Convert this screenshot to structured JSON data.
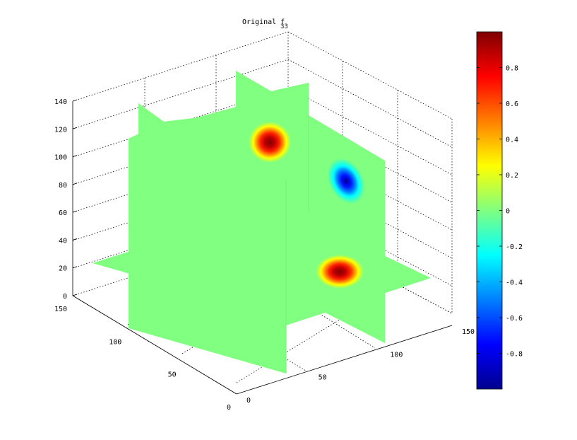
{
  "chart_data": {
    "type": "heatmap",
    "title": "Original f",
    "title_subscript": "33",
    "xlabel": "",
    "ylabel": "",
    "zlabel": "",
    "x_ticks": [
      "0",
      "50",
      "100",
      "150"
    ],
    "y_ticks": [
      "0",
      "50",
      "100",
      "150"
    ],
    "z_ticks": [
      "0",
      "20",
      "40",
      "60",
      "80",
      "100",
      "120",
      "140"
    ],
    "xlim": [
      0,
      150
    ],
    "ylim": [
      0,
      150
    ],
    "zlim": [
      0,
      140
    ],
    "grid": true,
    "colormap": "jet",
    "colorbar": {
      "range": [
        -1,
        1
      ],
      "ticks": [
        "0.8",
        "0.6",
        "0.4",
        "0.2",
        "0",
        "-0.2",
        "-0.4",
        "-0.6",
        "-0.8"
      ],
      "tick_values": [
        0.8,
        0.6,
        0.4,
        0.2,
        0,
        -0.2,
        -0.4,
        -0.6,
        -0.8
      ]
    },
    "slices": [
      {
        "plane": "z",
        "level": 20,
        "blob_value": 1.0
      },
      {
        "plane": "x",
        "level": 75,
        "blob_value": 1.0
      },
      {
        "plane": "y",
        "level": 75,
        "blob_value": -1.0
      }
    ],
    "background_value": 0,
    "colors": {
      "background": "#80ff80",
      "positive_peak": "#800000",
      "negative_peak": "#00008f"
    }
  }
}
